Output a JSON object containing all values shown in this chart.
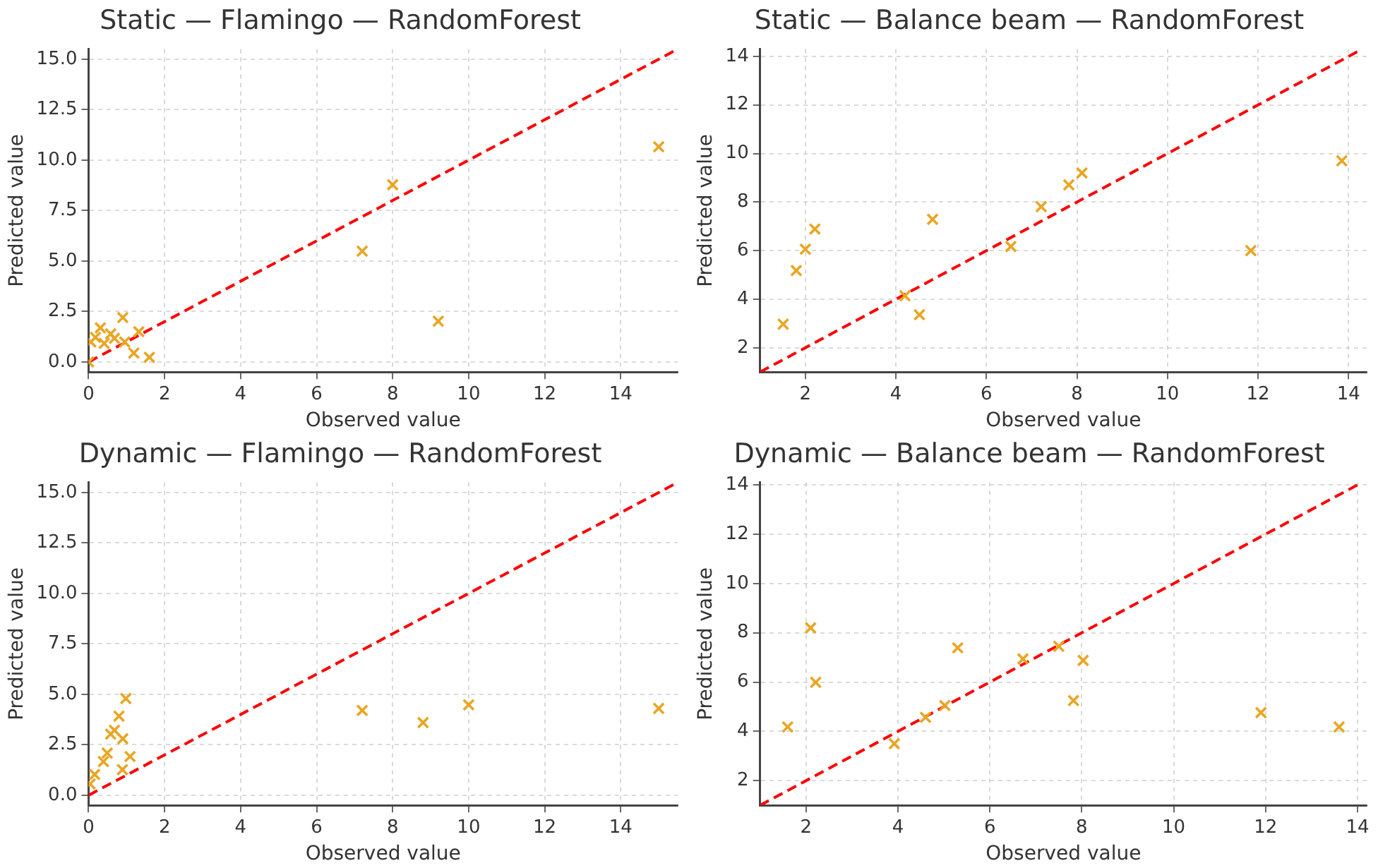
{
  "chart_data": [
    {
      "type": "scatter",
      "title": "Static — Flamingo — RandomForest",
      "xlabel": "Observed value",
      "ylabel": "Predicted value",
      "xlim": [
        0,
        15.5
      ],
      "ylim": [
        -0.5,
        15.5
      ],
      "xticks": [
        0,
        2,
        4,
        6,
        8,
        10,
        12,
        14
      ],
      "yticks": [
        {
          "value": 0,
          "label": "0.0"
        },
        {
          "value": 2.5,
          "label": "2.5"
        },
        {
          "value": 5,
          "label": "5.0"
        },
        {
          "value": 7.5,
          "label": "7.5"
        },
        {
          "value": 10,
          "label": "10.0"
        },
        {
          "value": 12.5,
          "label": "12.5"
        },
        {
          "value": 15,
          "label": "15.0"
        }
      ],
      "grid": true,
      "legend": false,
      "series": [
        {
          "type": "scatter",
          "marker": "cross",
          "color": "#e8a623",
          "x": [
            15.0,
            8.0,
            7.2,
            9.2,
            0.9,
            0.31,
            0.58,
            1.32,
            0.18,
            0.95,
            0.41,
            1.19,
            1.6,
            0.06,
            0,
            0.68
          ],
          "values": [
            10.66,
            8.78,
            5.49,
            2.02,
            2.2,
            1.69,
            1.39,
            1.5,
            1.22,
            0.99,
            0.92,
            0.44,
            0.23,
            0.99,
            0,
            1.17
          ]
        },
        {
          "type": "line",
          "marker": "none",
          "line_style": "dashed",
          "color": "#ff0000",
          "x": [
            0,
            15.5
          ],
          "values": [
            0,
            15.5
          ]
        }
      ]
    },
    {
      "type": "scatter",
      "title": "Static — Balance beam — RandomForest",
      "xlabel": "Observed value",
      "ylabel": "Predicted value",
      "xlim": [
        1.0,
        14.4
      ],
      "ylim": [
        1.0,
        14.3
      ],
      "xticks": [
        2,
        4,
        6,
        8,
        10,
        12,
        14
      ],
      "yticks": [
        2,
        4,
        6,
        8,
        10,
        12,
        14
      ],
      "grid": true,
      "legend": false,
      "series": [
        {
          "type": "scatter",
          "marker": "cross",
          "color": "#e8a623",
          "x": [
            1.51,
            1.8,
            2.0,
            2.21,
            4.2,
            4.52,
            4.81,
            6.54,
            7.21,
            7.82,
            8.11,
            11.84,
            13.85
          ],
          "values": [
            2.97,
            5.18,
            6.06,
            6.89,
            4.14,
            3.36,
            7.29,
            6.17,
            7.81,
            8.71,
            9.2,
            6.0,
            9.7
          ]
        },
        {
          "type": "line",
          "marker": "none",
          "line_style": "dashed",
          "color": "#ff0000",
          "x": [
            1.0,
            14.2
          ],
          "values": [
            1.0,
            14.2
          ]
        }
      ]
    },
    {
      "type": "scatter",
      "title": "Dynamic — Flamingo — RandomForest",
      "xlabel": "Observed value",
      "ylabel": "Predicted value",
      "xlim": [
        0,
        15.5
      ],
      "ylim": [
        -0.5,
        15.5
      ],
      "xticks": [
        0,
        2,
        4,
        6,
        8,
        10,
        12,
        14
      ],
      "yticks": [
        {
          "value": 0,
          "label": "0.0"
        },
        {
          "value": 2.5,
          "label": "2.5"
        },
        {
          "value": 5,
          "label": "5.0"
        },
        {
          "value": 7.5,
          "label": "7.5"
        },
        {
          "value": 10,
          "label": "10.0"
        },
        {
          "value": 12.5,
          "label": "12.5"
        },
        {
          "value": 15,
          "label": "15.0"
        }
      ],
      "grid": true,
      "legend": false,
      "series": [
        {
          "type": "scatter",
          "marker": "cross",
          "color": "#e8a623",
          "x": [
            0.98,
            0.8,
            0.68,
            0.58,
            0.9,
            1.09,
            0.49,
            0.39,
            0.89,
            0.16,
            0.04,
            7.2,
            8.8,
            10.0,
            15.0
          ],
          "values": [
            4.79,
            3.92,
            3.22,
            3.03,
            2.8,
            1.92,
            2.09,
            1.67,
            1.27,
            1.03,
            0.56,
            4.2,
            3.6,
            4.48,
            4.3
          ]
        },
        {
          "type": "line",
          "marker": "none",
          "line_style": "dashed",
          "color": "#ff0000",
          "x": [
            0,
            15.5
          ],
          "values": [
            0,
            15.5
          ]
        }
      ]
    },
    {
      "type": "scatter",
      "title": "Dynamic — Balance beam — RandomForest",
      "xlabel": "Observed value",
      "ylabel": "Predicted value",
      "xlim": [
        1.0,
        14.2
      ],
      "ylim": [
        1.0,
        14.1
      ],
      "xticks": [
        2,
        4,
        6,
        8,
        10,
        12,
        14
      ],
      "yticks": [
        2,
        4,
        6,
        8,
        10,
        12,
        14
      ],
      "grid": true,
      "legend": false,
      "series": [
        {
          "type": "scatter",
          "marker": "cross",
          "color": "#e8a623",
          "x": [
            1.6,
            2.1,
            2.21,
            3.92,
            4.6,
            5.02,
            5.3,
            6.72,
            7.5,
            7.82,
            8.03,
            11.9,
            13.6
          ],
          "values": [
            4.18,
            8.2,
            5.99,
            3.5,
            4.57,
            5.05,
            7.39,
            6.94,
            7.45,
            5.25,
            6.88,
            4.76,
            4.18
          ]
        },
        {
          "type": "line",
          "marker": "none",
          "line_style": "dashed",
          "color": "#ff0000",
          "x": [
            1.0,
            14.1
          ],
          "values": [
            1.0,
            14.1
          ]
        }
      ]
    }
  ]
}
